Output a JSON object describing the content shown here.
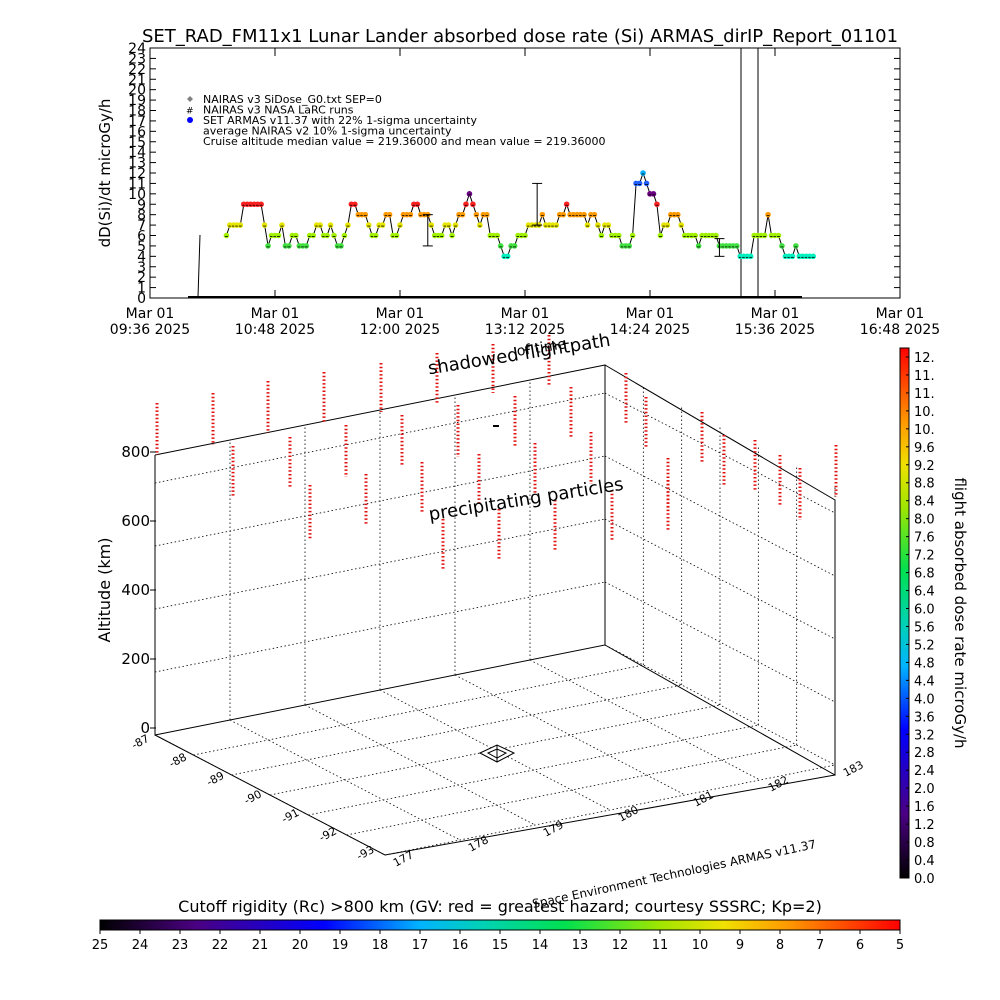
{
  "chart_data": [
    {
      "type": "line",
      "title": "SET_RAD_FM11x1  Lunar Lander absorbed dose rate (Si) ARMAS_dirIP_Report_01101",
      "ylabel": "dD(Si)/dt microGy/h",
      "ylim": [
        0,
        24
      ],
      "yticks": [
        "0",
        "1",
        "2",
        "3",
        "4",
        "5",
        "6",
        "7",
        "8",
        "9",
        "10",
        "11",
        "12",
        "13",
        "14",
        "15",
        "16",
        "17",
        "18",
        "19",
        "20",
        "21",
        "22",
        "23",
        "24"
      ],
      "xlim_minutes": [
        576,
        1008
      ],
      "xticks": [
        {
          "date": "Mar 01",
          "time": "09:36",
          "year": "2025",
          "min": 576
        },
        {
          "date": "Mar 01",
          "time": "10:48",
          "year": "2025",
          "min": 648
        },
        {
          "date": "Mar 01",
          "time": "12:00",
          "year": "2025",
          "min": 720
        },
        {
          "date": "Mar 01",
          "time": "13:12",
          "year": "2025",
          "min": 792
        },
        {
          "date": "Mar 01",
          "time": "14:24",
          "year": "2025",
          "min": 864
        },
        {
          "date": "Mar 01",
          "time": "15:36",
          "year": "2025",
          "min": 936
        },
        {
          "date": "Mar 01",
          "time": "16:48",
          "year": "2025",
          "min": 1008
        }
      ],
      "legend": [
        {
          "symbol": "diamond",
          "color": "#808080",
          "text": "NAIRAS v3 SiDose_G0.txt SEP=0"
        },
        {
          "symbol": "hash",
          "color": "#000000",
          "text": "NAIRAS v3 NASA LaRC runs"
        },
        {
          "symbol": "dot",
          "color": "#0000ff",
          "text": "SET ARMAS v11.37 with 22% 1-sigma uncertainty"
        },
        {
          "symbol": "none",
          "color": "#000000",
          "text": "average NAIRAS v2 10% 1-sigma uncertainty"
        },
        {
          "symbol": "none",
          "color": "#000000",
          "text": "Cruise altitude median value = 219.36000 and mean value = 219.36000"
        }
      ],
      "series": [
        {
          "points_min_value": [
            [
              620,
              6
            ],
            [
              622,
              7
            ],
            [
              624,
              7
            ],
            [
              626,
              7
            ],
            [
              628,
              7
            ],
            [
              630,
              9
            ],
            [
              632,
              9
            ],
            [
              634,
              9
            ],
            [
              636,
              9
            ],
            [
              638,
              9
            ],
            [
              640,
              9
            ],
            [
              642,
              7
            ],
            [
              644,
              5
            ],
            [
              646,
              6
            ],
            [
              648,
              6
            ],
            [
              650,
              6
            ],
            [
              652,
              7
            ],
            [
              654,
              5
            ],
            [
              656,
              5
            ],
            [
              658,
              6
            ],
            [
              660,
              6
            ],
            [
              662,
              5
            ],
            [
              664,
              5
            ],
            [
              666,
              5
            ],
            [
              668,
              6
            ],
            [
              670,
              6
            ],
            [
              672,
              7
            ],
            [
              674,
              7
            ],
            [
              676,
              6
            ],
            [
              678,
              6
            ],
            [
              680,
              7
            ],
            [
              682,
              6
            ],
            [
              684,
              5
            ],
            [
              686,
              5
            ],
            [
              688,
              6
            ],
            [
              690,
              7
            ],
            [
              692,
              9
            ],
            [
              694,
              9
            ],
            [
              696,
              8
            ],
            [
              698,
              8
            ],
            [
              700,
              8
            ],
            [
              702,
              7
            ],
            [
              704,
              6
            ],
            [
              706,
              6
            ],
            [
              708,
              7
            ],
            [
              710,
              7
            ],
            [
              712,
              8
            ],
            [
              714,
              8
            ],
            [
              716,
              6
            ],
            [
              718,
              6
            ],
            [
              720,
              7
            ],
            [
              722,
              8
            ],
            [
              724,
              8
            ],
            [
              726,
              8
            ],
            [
              728,
              9
            ],
            [
              730,
              9
            ],
            [
              732,
              8
            ],
            [
              734,
              8
            ],
            [
              736,
              8
            ],
            [
              738,
              7
            ],
            [
              740,
              6
            ],
            [
              742,
              6
            ],
            [
              744,
              6
            ],
            [
              746,
              7
            ],
            [
              748,
              7
            ],
            [
              750,
              6
            ],
            [
              752,
              7
            ],
            [
              754,
              8
            ],
            [
              756,
              8
            ],
            [
              758,
              9
            ],
            [
              760,
              10
            ],
            [
              762,
              9
            ],
            [
              764,
              8
            ],
            [
              766,
              7
            ],
            [
              768,
              8
            ],
            [
              770,
              8
            ],
            [
              772,
              6
            ],
            [
              774,
              6
            ],
            [
              776,
              6
            ],
            [
              778,
              5
            ],
            [
              780,
              4
            ],
            [
              782,
              4
            ],
            [
              784,
              5
            ],
            [
              786,
              5
            ],
            [
              788,
              6
            ],
            [
              790,
              6
            ],
            [
              792,
              6
            ],
            [
              794,
              7
            ],
            [
              796,
              7
            ],
            [
              798,
              7
            ],
            [
              800,
              7
            ],
            [
              802,
              8
            ],
            [
              804,
              7
            ],
            [
              806,
              7
            ],
            [
              808,
              7
            ],
            [
              810,
              7
            ],
            [
              812,
              8
            ],
            [
              814,
              8
            ],
            [
              816,
              9
            ],
            [
              818,
              8
            ],
            [
              820,
              8
            ],
            [
              822,
              8
            ],
            [
              824,
              8
            ],
            [
              826,
              8
            ],
            [
              828,
              7
            ],
            [
              830,
              8
            ],
            [
              832,
              8
            ],
            [
              834,
              7
            ],
            [
              836,
              6
            ],
            [
              838,
              7
            ],
            [
              840,
              7
            ],
            [
              842,
              6
            ],
            [
              844,
              6
            ],
            [
              846,
              6
            ],
            [
              848,
              5
            ],
            [
              850,
              5
            ],
            [
              852,
              5
            ],
            [
              854,
              6
            ],
            [
              856,
              11
            ],
            [
              858,
              11
            ],
            [
              860,
              12
            ],
            [
              862,
              11
            ],
            [
              864,
              10
            ],
            [
              866,
              10
            ],
            [
              868,
              9
            ],
            [
              870,
              6
            ],
            [
              872,
              7
            ],
            [
              874,
              7
            ],
            [
              876,
              8
            ],
            [
              878,
              8
            ],
            [
              880,
              8
            ],
            [
              882,
              7
            ],
            [
              884,
              6
            ],
            [
              886,
              6
            ],
            [
              888,
              6
            ],
            [
              890,
              6
            ],
            [
              892,
              5
            ],
            [
              894,
              6
            ],
            [
              896,
              6
            ],
            [
              898,
              6
            ],
            [
              900,
              6
            ],
            [
              902,
              6
            ],
            [
              904,
              5
            ],
            [
              906,
              5
            ],
            [
              908,
              5
            ],
            [
              910,
              5
            ],
            [
              912,
              5
            ],
            [
              914,
              5
            ],
            [
              916,
              4
            ],
            [
              918,
              4
            ],
            [
              920,
              4
            ],
            [
              922,
              4
            ],
            [
              924,
              6
            ],
            [
              926,
              6
            ],
            [
              928,
              6
            ],
            [
              930,
              6
            ],
            [
              932,
              8
            ],
            [
              934,
              6
            ],
            [
              936,
              6
            ],
            [
              938,
              6
            ],
            [
              940,
              5
            ],
            [
              942,
              4
            ],
            [
              944,
              4
            ],
            [
              946,
              4
            ],
            [
              948,
              5
            ],
            [
              950,
              4
            ],
            [
              952,
              4
            ],
            [
              954,
              4
            ],
            [
              956,
              4
            ],
            [
              958,
              4
            ]
          ]
        }
      ],
      "errorbars": [
        {
          "min": 736,
          "low": 5,
          "high": 8
        },
        {
          "min": 799,
          "low": 7,
          "high": 11
        },
        {
          "min": 904,
          "low": 4,
          "high": 5.7
        }
      ]
    },
    {
      "type": "scatter",
      "ylabel": "Altitude (km)",
      "z_ticks": [
        "0",
        "200",
        "400",
        "600",
        "800"
      ],
      "lat_ticks": [
        "-87",
        "-88",
        "-89",
        "-90",
        "-91",
        "-92",
        "-93"
      ],
      "lon_ticks": [
        "177",
        "178",
        "179",
        "180",
        "181",
        "182",
        "183"
      ],
      "annotations": {
        "shadowed": "shadowed flightpath",
        "of_time": "of time",
        "precipitating": "precipitating particles",
        "credit": "Space Environment Technologies ARMAS v11.37"
      },
      "colorbar": {
        "label": "flight absorbed dose rate microGy/h",
        "ticks": [
          "0.0",
          "0.4",
          "0.8",
          "1.2",
          "1.6",
          "2.0",
          "2.4",
          "2.8",
          "3.2",
          "3.6",
          "4.0",
          "4.4",
          "4.8",
          "5.2",
          "5.6",
          "6.0",
          "6.4",
          "6.8",
          "7.2",
          "7.6",
          "8.0",
          "8.4",
          "8.8",
          "9.2",
          "9.6",
          "10.",
          "10.",
          "11.",
          "11.",
          "12."
        ]
      }
    }
  ],
  "cutoff_bar": {
    "title": "Cutoff rigidity (Rc) >800 km (GV: red = greatest hazard; courtesy SSSRC; Kp=2)",
    "ticks": [
      "25",
      "24",
      "23",
      "22",
      "21",
      "20",
      "19",
      "18",
      "17",
      "16",
      "15",
      "14",
      "13",
      "12",
      "11",
      "10",
      "9",
      "8",
      "7",
      "6",
      "5"
    ]
  }
}
